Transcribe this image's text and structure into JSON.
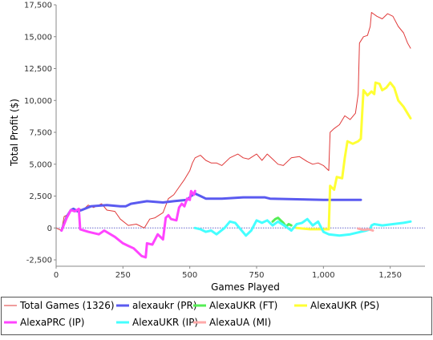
{
  "chart_data": {
    "type": "line",
    "xlabel": "Games Played",
    "ylabel": "Total Profit ($)",
    "xlim": [
      0,
      1380
    ],
    "ylim": [
      -3000,
      17500
    ],
    "x_ticks": [
      0,
      250,
      500,
      750,
      1000,
      1250
    ],
    "x_tick_labels": [
      "0",
      "250",
      "500",
      "750",
      "1,000",
      "1,250"
    ],
    "y_ticks": [
      -2500,
      0,
      2500,
      5000,
      7500,
      10000,
      12500,
      15000,
      17500
    ],
    "y_tick_labels": [
      "-2,500",
      "0",
      "2,500",
      "5,000",
      "7,500",
      "10,000",
      "12,500",
      "15,000",
      "17,500"
    ],
    "grid": false,
    "zero_line": true,
    "legend_position": "bottom",
    "series": [
      {
        "name": "Total Games (1326)",
        "color": "#e03a3a",
        "width": 1,
        "points": [
          [
            0,
            0
          ],
          [
            20,
            -200
          ],
          [
            30,
            900
          ],
          [
            40,
            1000
          ],
          [
            55,
            1400
          ],
          [
            70,
            1300
          ],
          [
            85,
            1500
          ],
          [
            100,
            1400
          ],
          [
            120,
            1800
          ],
          [
            140,
            1600
          ],
          [
            170,
            1900
          ],
          [
            190,
            1400
          ],
          [
            220,
            1300
          ],
          [
            240,
            700
          ],
          [
            270,
            200
          ],
          [
            300,
            300
          ],
          [
            330,
            0
          ],
          [
            350,
            700
          ],
          [
            370,
            800
          ],
          [
            400,
            1200
          ],
          [
            420,
            2300
          ],
          [
            440,
            2600
          ],
          [
            460,
            3200
          ],
          [
            480,
            3800
          ],
          [
            500,
            4500
          ],
          [
            510,
            5100
          ],
          [
            520,
            5500
          ],
          [
            540,
            5700
          ],
          [
            560,
            5300
          ],
          [
            580,
            5100
          ],
          [
            600,
            5100
          ],
          [
            620,
            4900
          ],
          [
            650,
            5500
          ],
          [
            680,
            5800
          ],
          [
            700,
            5500
          ],
          [
            720,
            5400
          ],
          [
            750,
            5800
          ],
          [
            770,
            5300
          ],
          [
            790,
            5800
          ],
          [
            810,
            5400
          ],
          [
            830,
            5000
          ],
          [
            850,
            4900
          ],
          [
            880,
            5500
          ],
          [
            910,
            5600
          ],
          [
            940,
            5200
          ],
          [
            960,
            5000
          ],
          [
            980,
            5100
          ],
          [
            1000,
            4900
          ],
          [
            1020,
            4500
          ],
          [
            1025,
            7500
          ],
          [
            1040,
            7800
          ],
          [
            1060,
            8100
          ],
          [
            1080,
            8800
          ],
          [
            1100,
            8500
          ],
          [
            1120,
            9000
          ],
          [
            1130,
            10500
          ],
          [
            1135,
            14500
          ],
          [
            1150,
            15000
          ],
          [
            1165,
            15100
          ],
          [
            1175,
            15800
          ],
          [
            1180,
            16900
          ],
          [
            1200,
            16600
          ],
          [
            1220,
            16400
          ],
          [
            1240,
            16800
          ],
          [
            1260,
            16600
          ],
          [
            1280,
            15800
          ],
          [
            1300,
            15300
          ],
          [
            1315,
            14500
          ],
          [
            1326,
            14100
          ]
        ]
      },
      {
        "name": "alexaukr (PR)",
        "color": "#5a5af0",
        "width": 3,
        "points": [
          [
            20,
            -200
          ],
          [
            40,
            900
          ],
          [
            55,
            1400
          ],
          [
            65,
            1500
          ],
          [
            80,
            1300
          ],
          [
            95,
            1400
          ],
          [
            130,
            1700
          ],
          [
            190,
            1800
          ],
          [
            240,
            1700
          ],
          [
            260,
            1700
          ],
          [
            280,
            1900
          ],
          [
            340,
            2100
          ],
          [
            400,
            2000
          ],
          [
            440,
            2100
          ],
          [
            490,
            2200
          ],
          [
            505,
            2500
          ],
          [
            520,
            2700
          ],
          [
            540,
            2500
          ],
          [
            560,
            2300
          ],
          [
            620,
            2300
          ],
          [
            700,
            2400
          ],
          [
            780,
            2400
          ],
          [
            800,
            2300
          ],
          [
            900,
            2250
          ],
          [
            1000,
            2200
          ],
          [
            1050,
            2200
          ],
          [
            1140,
            2200
          ]
        ]
      },
      {
        "name": "AlexaUKR (FT)",
        "color": "#55ee55",
        "width": 3,
        "points": [
          [
            810,
            500
          ],
          [
            820,
            700
          ],
          [
            830,
            800
          ],
          [
            840,
            600
          ],
          [
            850,
            400
          ],
          [
            860,
            100
          ],
          [
            870,
            300
          ],
          [
            880,
            200
          ]
        ]
      },
      {
        "name": "AlexaUKR (PS)",
        "color": "#ffff33",
        "width": 3,
        "points": [
          [
            900,
            0
          ],
          [
            950,
            -100
          ],
          [
            990,
            -100
          ],
          [
            1020,
            -100
          ],
          [
            1025,
            3300
          ],
          [
            1040,
            3000
          ],
          [
            1050,
            4000
          ],
          [
            1070,
            3900
          ],
          [
            1080,
            5500
          ],
          [
            1090,
            6800
          ],
          [
            1110,
            6600
          ],
          [
            1130,
            6800
          ],
          [
            1140,
            7000
          ],
          [
            1145,
            9000
          ],
          [
            1150,
            10800
          ],
          [
            1165,
            10400
          ],
          [
            1180,
            10700
          ],
          [
            1190,
            10500
          ],
          [
            1195,
            11400
          ],
          [
            1210,
            11300
          ],
          [
            1220,
            10800
          ],
          [
            1235,
            11000
          ],
          [
            1250,
            11400
          ],
          [
            1265,
            11000
          ],
          [
            1280,
            10000
          ],
          [
            1300,
            9500
          ],
          [
            1326,
            8600
          ]
        ]
      },
      {
        "name": "AlexaPRC (IP)",
        "color": "#ff44ff",
        "width": 3,
        "points": [
          [
            20,
            -200
          ],
          [
            40,
            800
          ],
          [
            55,
            1400
          ],
          [
            70,
            1300
          ],
          [
            85,
            1500
          ],
          [
            90,
            -100
          ],
          [
            120,
            -300
          ],
          [
            160,
            -500
          ],
          [
            180,
            -200
          ],
          [
            220,
            -700
          ],
          [
            250,
            -1200
          ],
          [
            270,
            -1400
          ],
          [
            290,
            -1600
          ],
          [
            320,
            -2200
          ],
          [
            335,
            -2300
          ],
          [
            340,
            -1200
          ],
          [
            360,
            -1300
          ],
          [
            380,
            -500
          ],
          [
            400,
            -900
          ],
          [
            410,
            800
          ],
          [
            420,
            1000
          ],
          [
            430,
            700
          ],
          [
            450,
            600
          ],
          [
            460,
            1600
          ],
          [
            470,
            1900
          ],
          [
            480,
            1700
          ],
          [
            490,
            2300
          ],
          [
            500,
            2200
          ],
          [
            505,
            2900
          ],
          [
            515,
            2600
          ],
          [
            520,
            2900
          ]
        ]
      },
      {
        "name": "AlexaUKR (IP)",
        "color": "#44ffff",
        "width": 3,
        "points": [
          [
            520,
            0
          ],
          [
            540,
            -100
          ],
          [
            560,
            -300
          ],
          [
            580,
            -200
          ],
          [
            600,
            -500
          ],
          [
            630,
            0
          ],
          [
            650,
            500
          ],
          [
            670,
            400
          ],
          [
            690,
            -100
          ],
          [
            710,
            -600
          ],
          [
            730,
            -200
          ],
          [
            750,
            600
          ],
          [
            770,
            400
          ],
          [
            790,
            600
          ],
          [
            810,
            200
          ],
          [
            830,
            500
          ],
          [
            860,
            100
          ],
          [
            880,
            -200
          ],
          [
            900,
            300
          ],
          [
            920,
            400
          ],
          [
            940,
            700
          ],
          [
            960,
            200
          ],
          [
            980,
            500
          ],
          [
            1000,
            -300
          ],
          [
            1020,
            -500
          ],
          [
            1060,
            -600
          ],
          [
            1100,
            -500
          ],
          [
            1140,
            -300
          ],
          [
            1160,
            -200
          ],
          [
            1175,
            -100
          ],
          [
            1180,
            200
          ],
          [
            1190,
            300
          ],
          [
            1220,
            200
          ],
          [
            1260,
            300
          ],
          [
            1300,
            400
          ],
          [
            1326,
            500
          ]
        ]
      },
      {
        "name": "AlexaUA (MI)",
        "color": "#ffaaaa",
        "width": 3,
        "points": [
          [
            1130,
            -50
          ],
          [
            1150,
            -150
          ],
          [
            1170,
            -100
          ],
          [
            1185,
            -200
          ]
        ]
      }
    ]
  }
}
